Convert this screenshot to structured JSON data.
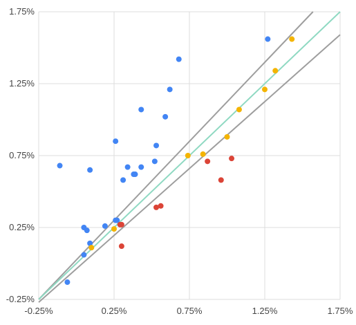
{
  "chart_data": {
    "type": "scatter",
    "title": "",
    "xlabel": "",
    "ylabel": "",
    "xlim": [
      -0.25,
      1.75
    ],
    "ylim": [
      -0.25,
      1.75
    ],
    "x_ticks": [
      -0.25,
      0.25,
      0.75,
      1.25,
      1.75
    ],
    "y_ticks": [
      -0.25,
      0.25,
      0.75,
      1.25,
      1.75
    ],
    "x_tick_labels": [
      "-0.25%",
      "0.25%",
      "0.75%",
      "1.25%",
      "1.75%"
    ],
    "y_tick_labels": [
      "-0.25%",
      "0.25%",
      "0.75%",
      "1.25%",
      "1.75%"
    ],
    "grid": true,
    "legend": "none",
    "series": [
      {
        "color": "#4285f4",
        "points": [
          [
            -0.11,
            0.68
          ],
          [
            -0.06,
            -0.13
          ],
          [
            0.05,
            0.25
          ],
          [
            0.05,
            0.06
          ],
          [
            0.07,
            0.23
          ],
          [
            0.09,
            0.14
          ],
          [
            0.09,
            0.65
          ],
          [
            0.19,
            0.26
          ],
          [
            0.26,
            0.3
          ],
          [
            0.26,
            0.85
          ],
          [
            0.27,
            0.3
          ],
          [
            0.31,
            0.58
          ],
          [
            0.34,
            0.67
          ],
          [
            0.38,
            0.62
          ],
          [
            0.39,
            0.62
          ],
          [
            0.43,
            0.67
          ],
          [
            0.43,
            1.07
          ],
          [
            0.52,
            0.71
          ],
          [
            0.53,
            0.82
          ],
          [
            0.59,
            1.02
          ],
          [
            0.62,
            1.21
          ],
          [
            0.68,
            1.42
          ],
          [
            1.27,
            1.56
          ]
        ]
      },
      {
        "color": "#db4437",
        "points": [
          [
            0.29,
            0.27
          ],
          [
            0.3,
            0.27
          ],
          [
            0.3,
            0.12
          ],
          [
            0.53,
            0.39
          ],
          [
            0.56,
            0.4
          ],
          [
            0.87,
            0.71
          ],
          [
            0.96,
            0.58
          ],
          [
            1.03,
            0.73
          ]
        ]
      },
      {
        "color": "#f4b400",
        "points": [
          [
            0.1,
            0.11
          ],
          [
            0.25,
            0.24
          ],
          [
            0.74,
            0.75
          ],
          [
            0.84,
            0.76
          ],
          [
            1.0,
            0.88
          ],
          [
            1.08,
            1.07
          ],
          [
            1.25,
            1.21
          ],
          [
            1.32,
            1.34
          ],
          [
            1.43,
            1.56
          ]
        ]
      }
    ],
    "lines": [
      {
        "color": "#9e9e9e",
        "from": [
          -0.25,
          -0.27
        ],
        "to": [
          1.75,
          1.59
        ]
      },
      {
        "color": "#9e9e9e",
        "from": [
          -0.25,
          -0.25
        ],
        "to": [
          1.57,
          1.75
        ]
      },
      {
        "color": "#8fd9c2",
        "from": [
          -0.25,
          -0.25
        ],
        "to": [
          1.75,
          1.75
        ]
      }
    ]
  }
}
